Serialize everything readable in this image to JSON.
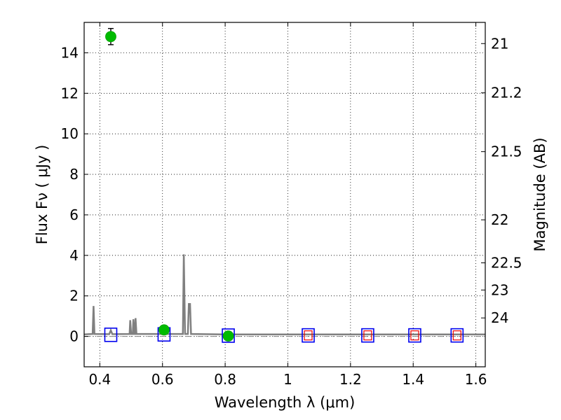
{
  "chart_data": {
    "type": "scatter",
    "xlabel": "Wavelength  λ (μm)",
    "ylabel": "Flux  Fν  ( μJy )",
    "ylabel_right": "Magnitude (AB)",
    "xlim": [
      0.35,
      1.63
    ],
    "ylim": [
      -1.5,
      15.5
    ],
    "x_ticks": [
      0.4,
      0.6,
      0.8,
      1.0,
      1.2,
      1.4,
      1.6
    ],
    "x_tick_labels": [
      "0.4",
      "0.6",
      "0.8",
      "1",
      "1.2",
      "1.4",
      "1.6"
    ],
    "y_ticks": [
      0,
      2,
      4,
      6,
      8,
      10,
      12,
      14
    ],
    "y_tick_labels": [
      "0",
      "2",
      "4",
      "6",
      "8",
      "10",
      "12",
      "14"
    ],
    "mag_ticks": [
      21,
      21.2,
      21.5,
      22,
      22.5,
      23,
      24
    ],
    "mag_tick_labels": [
      "21",
      "21.2",
      "21.5",
      "22",
      "22.5",
      "23",
      "24"
    ],
    "grid": true,
    "colors": {
      "observed": "#00bb00",
      "model_box": "#0000ee",
      "upper_limit": "#ee0000",
      "sed": "#808080",
      "zero_line": "#808080"
    },
    "observed_points": [
      {
        "x": 0.435,
        "y": 14.8,
        "err": 0.4
      },
      {
        "x": 0.605,
        "y": 0.32,
        "err": 0.1
      },
      {
        "x": 0.81,
        "y": 0.02,
        "err": 0.06
      }
    ],
    "model_points": [
      {
        "x": 0.435,
        "y": 0.08
      },
      {
        "x": 0.605,
        "y": 0.1
      },
      {
        "x": 0.81,
        "y": 0.04
      },
      {
        "x": 1.065,
        "y": 0.05
      },
      {
        "x": 1.255,
        "y": 0.05
      },
      {
        "x": 1.405,
        "y": 0.05
      },
      {
        "x": 1.54,
        "y": 0.05
      }
    ],
    "upper_limits": [
      {
        "x": 1.065,
        "y": 0.05
      },
      {
        "x": 1.255,
        "y": 0.05
      },
      {
        "x": 1.405,
        "y": 0.05
      },
      {
        "x": 1.54,
        "y": 0.05
      }
    ],
    "sed_curve": [
      [
        0.35,
        0.1
      ],
      [
        0.377,
        0.12
      ],
      [
        0.38,
        1.5
      ],
      [
        0.383,
        0.12
      ],
      [
        0.43,
        0.11
      ],
      [
        0.435,
        0.3
      ],
      [
        0.44,
        0.11
      ],
      [
        0.495,
        0.12
      ],
      [
        0.497,
        0.8
      ],
      [
        0.5,
        0.12
      ],
      [
        0.505,
        0.12
      ],
      [
        0.507,
        0.85
      ],
      [
        0.51,
        0.12
      ],
      [
        0.512,
        0.12
      ],
      [
        0.514,
        0.9
      ],
      [
        0.517,
        0.12
      ],
      [
        0.665,
        0.12
      ],
      [
        0.668,
        4.05
      ],
      [
        0.672,
        0.12
      ],
      [
        0.681,
        0.12
      ],
      [
        0.684,
        1.6
      ],
      [
        0.688,
        1.6
      ],
      [
        0.691,
        0.12
      ],
      [
        0.8,
        0.1
      ],
      [
        1.0,
        0.1
      ],
      [
        1.3,
        0.1
      ],
      [
        1.63,
        0.1
      ]
    ],
    "zero_level": 0
  }
}
